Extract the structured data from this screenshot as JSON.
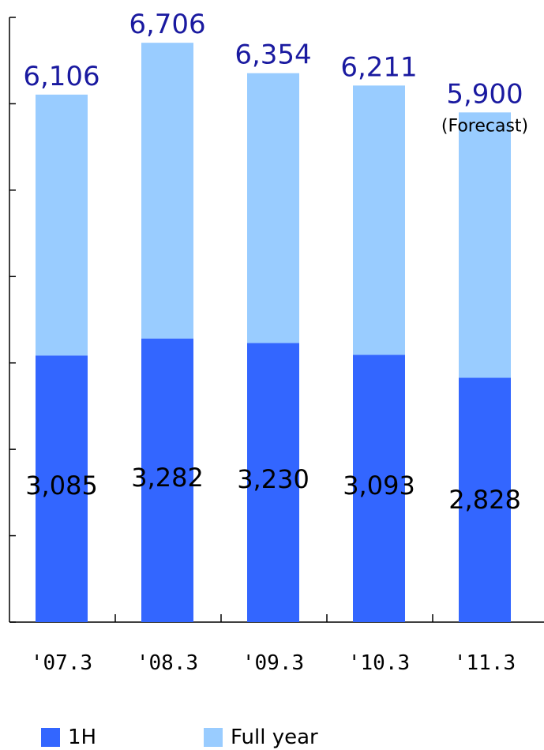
{
  "chart_data": {
    "type": "bar",
    "stacked": true,
    "categories": [
      "'07.3",
      "'08.3",
      "'09.3",
      "'10.3",
      "'11.3"
    ],
    "series": [
      {
        "name": "1H",
        "color": "#3366ff",
        "values": [
          3085,
          3282,
          3230,
          3093,
          2828
        ]
      },
      {
        "name": "Full year",
        "color": "#99ccff",
        "totals": [
          6106,
          6706,
          6354,
          6211,
          5900
        ]
      }
    ],
    "total_labels": [
      "6,106",
      "6,706",
      "6,354",
      "6,211",
      "5,900"
    ],
    "h1_labels": [
      "3,085",
      "3,282",
      "3,230",
      "3,093",
      "2,828"
    ],
    "annotations": [
      {
        "category": "'11.3",
        "text": "(Forecast)"
      }
    ],
    "title": "",
    "xlabel": "",
    "ylabel": "",
    "ylim": [
      0,
      7000
    ],
    "y_tick_step": 1000,
    "y_tick_labels_shown": false,
    "grid": false,
    "legend_position": "bottom-left",
    "label_colors": {
      "total": "#1a1aa0",
      "h1": "#000000"
    }
  }
}
